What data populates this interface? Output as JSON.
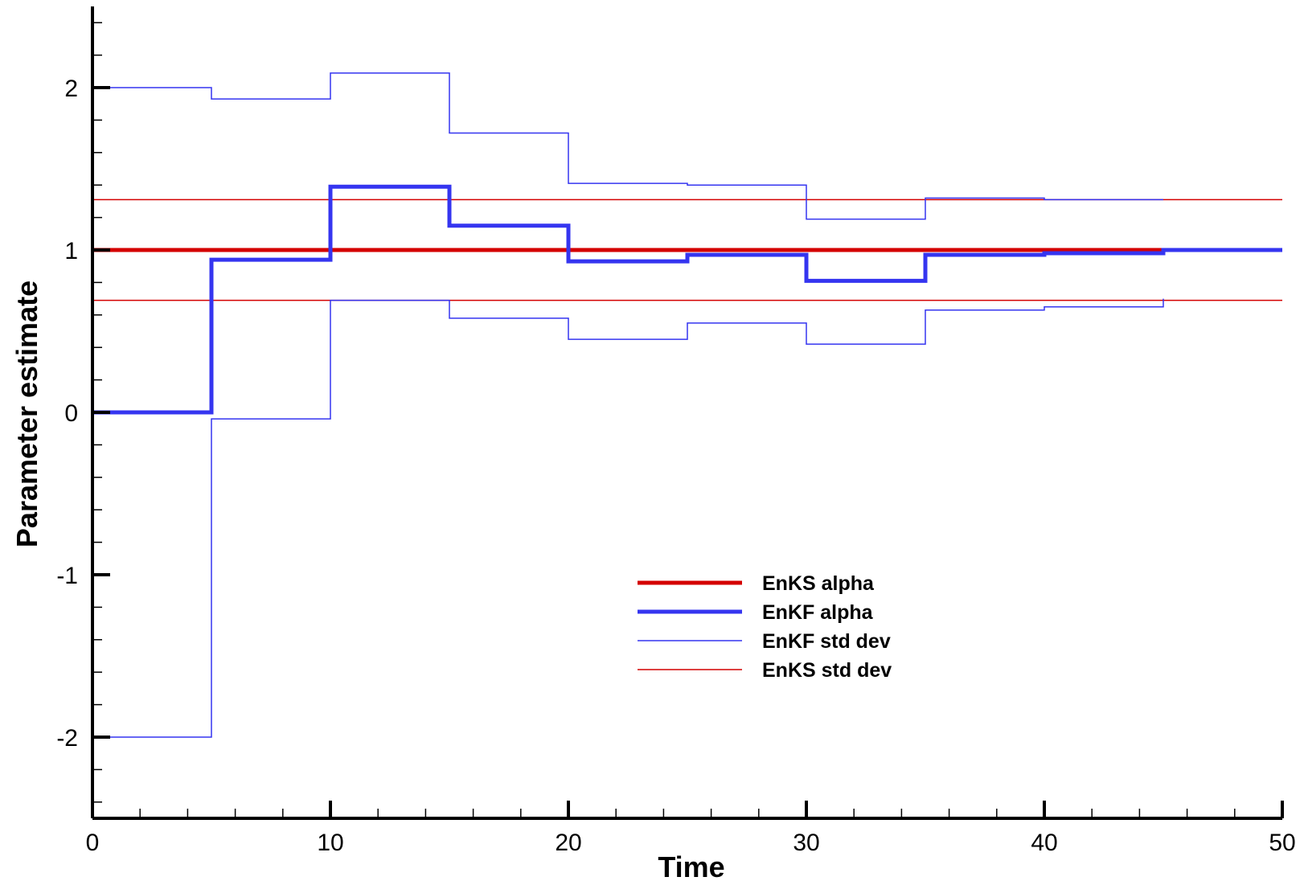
{
  "chart_data": {
    "type": "line",
    "step": true,
    "xlabel": "Time",
    "ylabel": "Parameter estimate",
    "xlim": [
      0,
      50
    ],
    "ylim": [
      -2.5,
      2.5
    ],
    "x_ticks": [
      0,
      10,
      20,
      30,
      40,
      50
    ],
    "x_tick_labels": [
      "0",
      "10",
      "20",
      "30",
      "40",
      "50"
    ],
    "y_ticks": [
      -2,
      -1,
      0,
      1,
      2
    ],
    "y_tick_labels": [
      "-2",
      "-1",
      "0",
      "1",
      "2"
    ],
    "grid": false,
    "legend_position": "bottom-center",
    "series": [
      {
        "name": "EnKS alpha",
        "color": "#d40000",
        "style": "thick",
        "x": [
          0,
          45
        ],
        "y": [
          1.0,
          1.0
        ]
      },
      {
        "name": "EnKF alpha",
        "color": "#3535f0",
        "style": "thick",
        "x": [
          0,
          5,
          10,
          15,
          20,
          25,
          30,
          35,
          40,
          45,
          50
        ],
        "y": [
          0.0,
          0.94,
          1.39,
          1.15,
          0.93,
          0.97,
          0.81,
          0.97,
          0.98,
          1.0,
          1.0
        ]
      },
      {
        "name": "EnKF std dev",
        "color": "#3535f0",
        "style": "thin",
        "x": [
          0,
          5,
          10,
          15,
          20,
          25,
          30,
          35,
          40,
          45
        ],
        "y": [
          2.0,
          1.93,
          2.09,
          1.72,
          1.41,
          1.4,
          1.19,
          1.32,
          1.31,
          1.31
        ],
        "lower": [
          -2.0,
          -0.04,
          0.69,
          0.58,
          0.45,
          0.55,
          0.42,
          0.63,
          0.65,
          0.7
        ]
      },
      {
        "name": "EnKS std dev",
        "color": "#d40000",
        "style": "thin",
        "x": [
          0,
          50
        ],
        "y": [
          1.31,
          1.31
        ],
        "lower": [
          0.69,
          0.69
        ]
      }
    ]
  }
}
